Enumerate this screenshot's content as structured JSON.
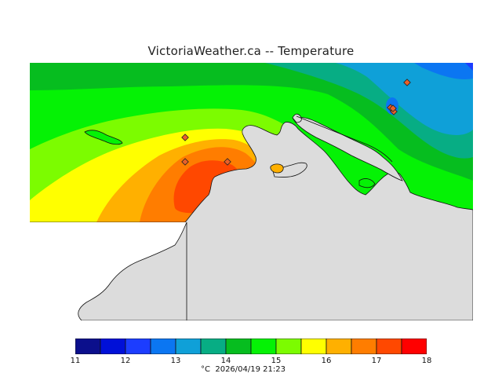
{
  "title": "VictoriaWeather.ca  --  Temperature",
  "legend": {
    "ticks": [
      "11",
      "12",
      "13",
      "14",
      "15",
      "16",
      "17",
      "18"
    ],
    "colors": [
      "#0b0f8c",
      "#0010d8",
      "#1c3dff",
      "#0b76f2",
      "#0fa0d8",
      "#07ad84",
      "#06bd1f",
      "#05f205",
      "#7cfc00",
      "#ffff00",
      "#ffb000",
      "#ff7d00",
      "#ff4800",
      "#ff0000"
    ],
    "units": "°C",
    "timestamp": "2026/04/19 21:23"
  },
  "map": {
    "land_color": "#dcdcdc",
    "station_color": "#e9602a",
    "stations_count": 7
  }
}
